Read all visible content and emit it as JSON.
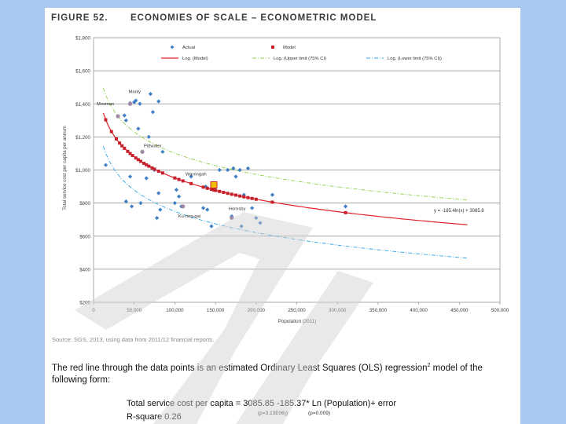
{
  "figure": {
    "label": "FIGURE 52.",
    "title": "ECONOMIES OF SCALE – ECONOMETRIC MODEL",
    "source": "Source: SGS, 2013, using data from 2011/12 financial reports."
  },
  "text": {
    "para_a": "The red line through the data points is an estimated Ordinary Least Squares (OLS) regression",
    "para_sup": "2",
    "para_b": " model of the following form:",
    "formula": "Total service cost per capita =  3085.85  -185.37* Ln (Population)+ error",
    "rsquare": "R-square 0.26",
    "p_value_1": "(p=3.13E06))",
    "p_value_2": "(p=0.009)"
  },
  "chart_data": {
    "type": "scatter",
    "xlabel": "Population (2011)",
    "ylabel": "Total service cost per capita per annum",
    "xlim": [
      0,
      500000
    ],
    "ylim": [
      200,
      1800
    ],
    "x_ticks": [
      0,
      50000,
      100000,
      150000,
      200000,
      250000,
      300000,
      350000,
      400000,
      450000,
      500000
    ],
    "x_tick_labels": [
      "0",
      "50,000",
      "100,000",
      "150,000",
      "200,000",
      "250,000",
      "300,000",
      "350,000",
      "400,000",
      "450,000",
      "500,000"
    ],
    "y_ticks": [
      200,
      400,
      600,
      800,
      1000,
      1200,
      1400,
      1600,
      1800
    ],
    "y_tick_labels": [
      "$200",
      "$400",
      "$600",
      "$800",
      "$1,000",
      "$1,200",
      "$1,400",
      "$1,600",
      "$1,800"
    ],
    "grid": true,
    "legend": [
      {
        "label": "Actual",
        "kind": "actual"
      },
      {
        "label": "Model",
        "kind": "model"
      },
      {
        "label": "Log. (Model)",
        "kind": "log-model"
      },
      {
        "label": "Log. (Upper limit (75% CI)",
        "kind": "upper"
      },
      {
        "label": "Log. (Lower limit (75% CI))",
        "kind": "lower"
      }
    ],
    "equation": "y = -185.4ln(x) + 3085.8",
    "model": {
      "intercept": 3085.85,
      "slope": -185.37
    },
    "upper_limit": {
      "intercept": 3236,
      "slope": -185.37
    },
    "lower_limit": {
      "intercept": 2884,
      "slope": -185.37
    },
    "actual": [
      [
        15000,
        1030
      ],
      [
        30000,
        1325
      ],
      [
        38000,
        1330
      ],
      [
        40000,
        810
      ],
      [
        40000,
        1300
      ],
      [
        45000,
        1405
      ],
      [
        45000,
        960
      ],
      [
        47000,
        780
      ],
      [
        50000,
        1410
      ],
      [
        52000,
        1420
      ],
      [
        55000,
        1250
      ],
      [
        57000,
        1400
      ],
      [
        58000,
        800
      ],
      [
        60000,
        1110
      ],
      [
        65000,
        950
      ],
      [
        68000,
        1200
      ],
      [
        70000,
        1460
      ],
      [
        73000,
        1350
      ],
      [
        75000,
        1000
      ],
      [
        78000,
        710
      ],
      [
        80000,
        1415
      ],
      [
        80000,
        860
      ],
      [
        82000,
        760
      ],
      [
        85000,
        1110
      ],
      [
        100000,
        800
      ],
      [
        102000,
        880
      ],
      [
        105000,
        840
      ],
      [
        108000,
        780
      ],
      [
        120000,
        960
      ],
      [
        135000,
        770
      ],
      [
        138000,
        900
      ],
      [
        140000,
        760
      ],
      [
        145000,
        660
      ],
      [
        150000,
        880
      ],
      [
        155000,
        1000
      ],
      [
        165000,
        1000
      ],
      [
        170000,
        720
      ],
      [
        172000,
        1010
      ],
      [
        175000,
        960
      ],
      [
        180000,
        1000
      ],
      [
        182000,
        660
      ],
      [
        185000,
        850
      ],
      [
        190000,
        1010
      ],
      [
        195000,
        770
      ],
      [
        200000,
        710
      ],
      [
        205000,
        680
      ],
      [
        220000,
        850
      ],
      [
        310000,
        780
      ]
    ],
    "named_councils": [
      {
        "name": "Manly",
        "x": 45000,
        "y": 1400
      },
      {
        "name": "Mosman",
        "x": 30000,
        "y": 1325
      },
      {
        "name": "Pittwater",
        "x": 60000,
        "y": 1110
      },
      {
        "name": "Warringah",
        "x": 148000,
        "y": 910
      },
      {
        "name": "Ku-ring-gai",
        "x": 110000,
        "y": 780
      },
      {
        "name": "Hornsby",
        "x": 170000,
        "y": 710
      }
    ],
    "model_points": [
      15000,
      22000,
      28000,
      32000,
      35000,
      38000,
      42000,
      45000,
      48000,
      52000,
      55000,
      58000,
      62000,
      65000,
      68000,
      72000,
      75000,
      80000,
      85000,
      100000,
      105000,
      110000,
      120000,
      135000,
      140000,
      145000,
      148000,
      150000,
      155000,
      160000,
      165000,
      170000,
      175000,
      180000,
      185000,
      190000,
      195000,
      200000,
      220000,
      310000
    ]
  }
}
